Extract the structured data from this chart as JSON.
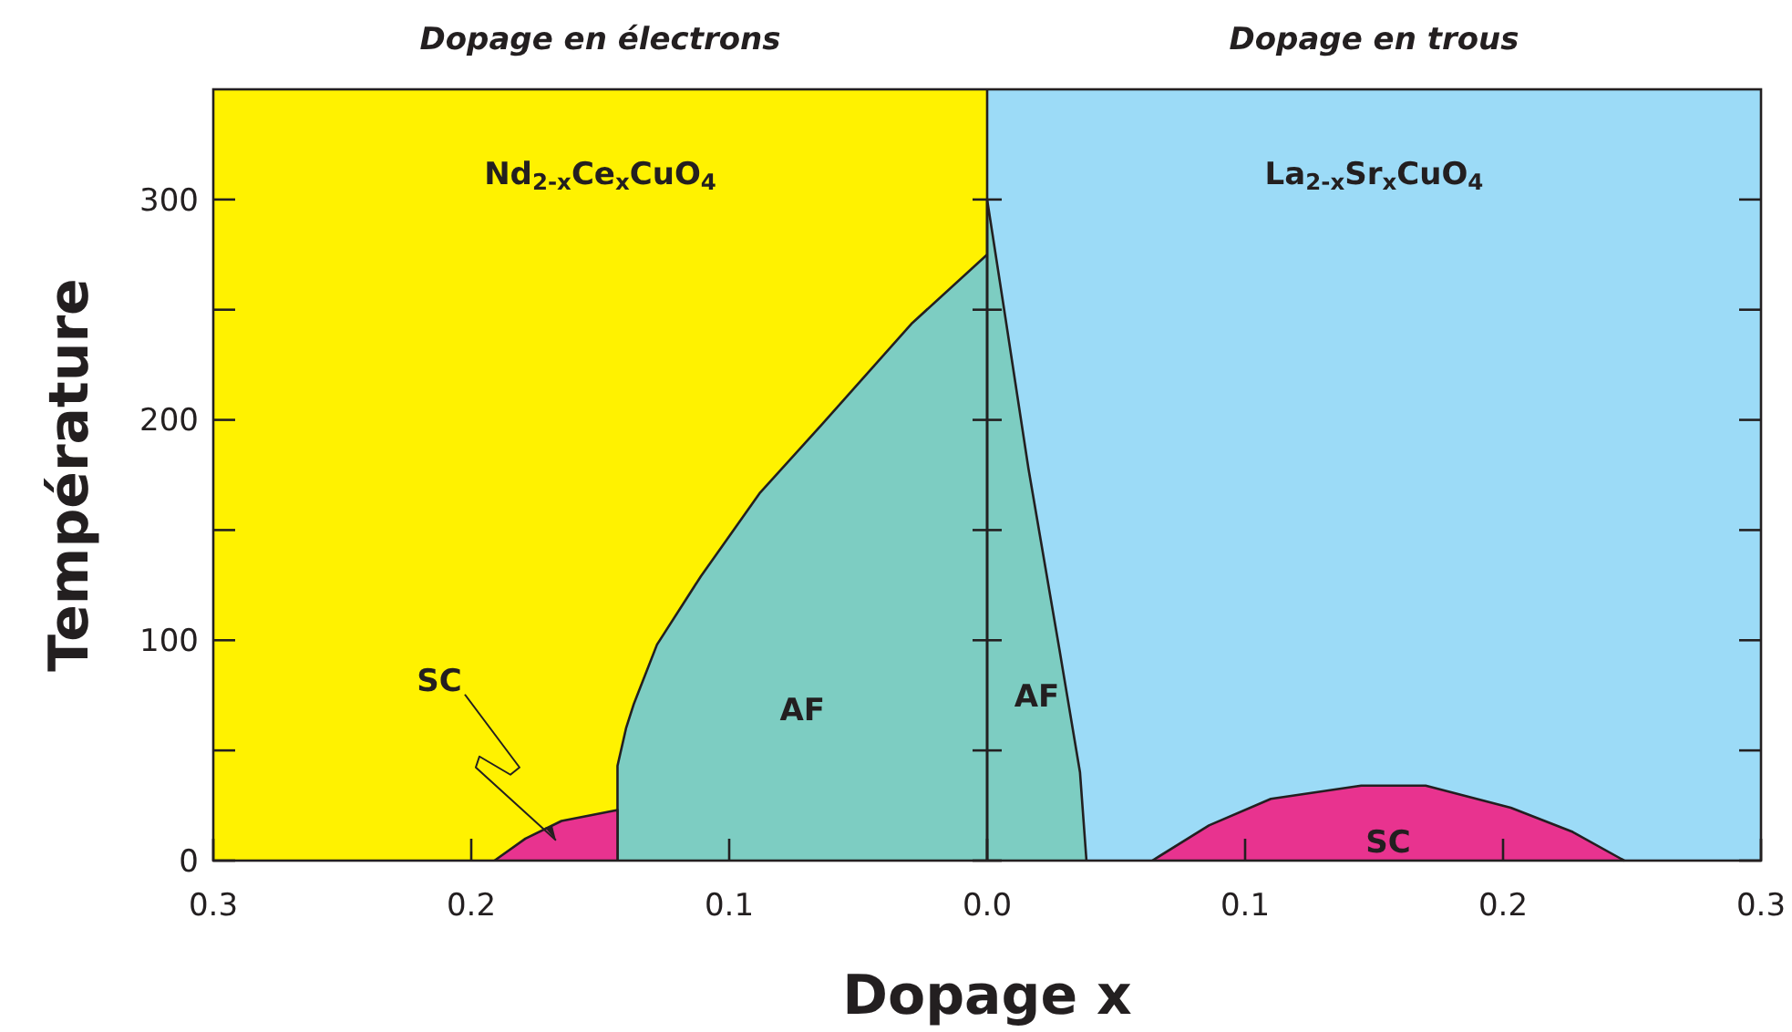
{
  "chart_data": {
    "type": "area",
    "xlabel": "Dopage x",
    "ylabel": "Température",
    "xlim": [
      -0.3,
      0.3
    ],
    "xticks": [
      {
        "value": -0.3,
        "label": "0.3"
      },
      {
        "value": -0.2,
        "label": "0.2"
      },
      {
        "value": -0.1,
        "label": "0.1"
      },
      {
        "value": 0,
        "label": "0.0"
      },
      {
        "value": 0.1,
        "label": "0.1"
      },
      {
        "value": 0.2,
        "label": "0.2"
      },
      {
        "value": 0.3,
        "label": "0.3"
      }
    ],
    "ylim": [
      0,
      350
    ],
    "yticks": [
      0,
      {
        "value": 50,
        "label": null
      },
      100,
      {
        "value": 150,
        "label": null
      },
      200,
      {
        "value": 250,
        "label": null
      },
      300
    ],
    "bands": [
      {
        "axis": "x",
        "from": -0.3,
        "to": 0,
        "label": "Dopage en électrons",
        "color": "#fff200"
      },
      {
        "axis": "x",
        "from": 0,
        "to": 0.3,
        "label": "Dopage en trous",
        "color": "#9cdbf7"
      }
    ],
    "ref_lines": [
      {
        "axis": "x",
        "value": 0,
        "color": "#231f20"
      }
    ],
    "series": [
      {
        "name": "AF",
        "color": "#7dcdc2",
        "x": [
          -0.1433,
          -0.1433,
          -0.14,
          -0.137,
          -0.128,
          -0.111,
          -0.088,
          -0.064,
          -0.029,
          0
        ],
        "values": [
          0,
          43,
          60,
          71,
          98,
          129,
          167,
          198,
          244,
          275
        ]
      },
      {
        "name": "AF",
        "color": "#7dcdc2",
        "x": [
          0,
          0,
          0.007,
          0.016,
          0.028,
          0.036,
          0.0385
        ],
        "values": [
          0,
          300,
          247,
          178,
          96,
          40,
          0
        ]
      },
      {
        "name": "SC",
        "color": "#e8338f",
        "x": [
          -0.191,
          -0.179,
          -0.165,
          -0.1433,
          -0.1433
        ],
        "values": [
          0,
          10,
          18,
          23,
          0
        ]
      },
      {
        "name": "SC",
        "color": "#e8338f",
        "x": [
          0.064,
          0.086,
          0.11,
          0.145,
          0.17,
          0.203,
          0.227,
          0.247
        ],
        "values": [
          0,
          16,
          28,
          34,
          34,
          24,
          13,
          0
        ]
      }
    ],
    "annotations": [
      "Nd$_{2-x}$Ce$_{x}$CuO$_{4}$",
      "La$_{2-x}$Sr$_{x}$CuO$_{4}$"
    ]
  }
}
